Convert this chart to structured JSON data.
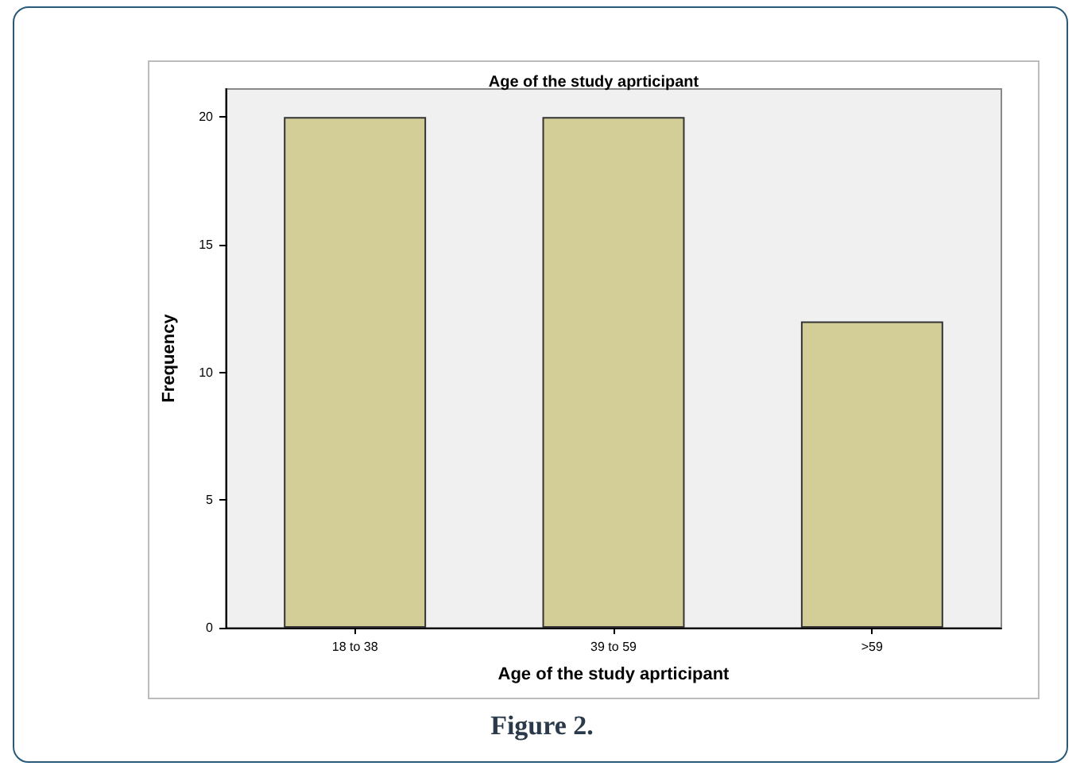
{
  "chart_data": {
    "type": "bar",
    "title": "Age of the study aprticipant",
    "xlabel": "Age of the study aprticipant",
    "ylabel": "Frequency",
    "categories": [
      "18 to 38",
      "39 to 59",
      ">59"
    ],
    "values": [
      20,
      20,
      12
    ],
    "color": "#d3ce98",
    "ylim": [
      0,
      21.1
    ],
    "yticks": [
      0,
      5,
      10,
      15,
      20
    ],
    "grid": false,
    "annotations": [
      "Figure 2."
    ]
  }
}
